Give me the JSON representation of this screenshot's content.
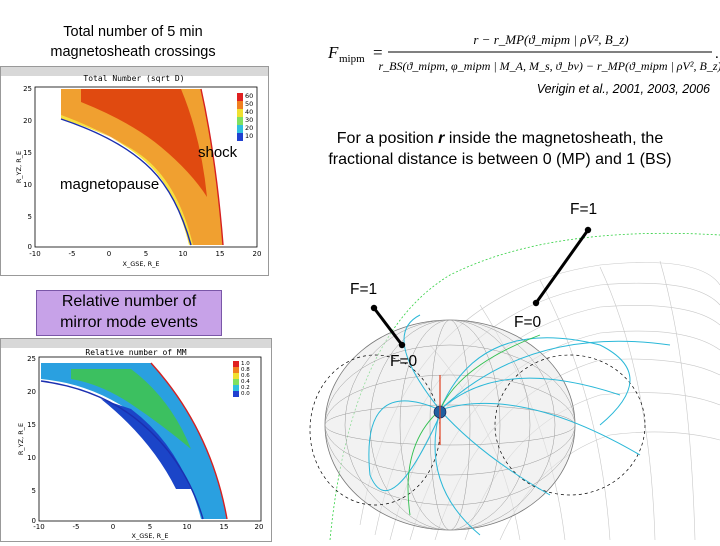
{
  "top_panel": {
    "heading_line1": "Total number of 5 min",
    "heading_line2": "magnetosheath crossings",
    "plot_title": "Total Number (sqrt D)",
    "label_shock": "shock",
    "label_magnetopause": "magnetopause",
    "x_axis_label": "X_GSE, R_E",
    "y_axis_label": "R_YZ, R_E",
    "x_ticks": [
      "-10",
      "-5",
      "0",
      "5",
      "10",
      "15",
      "20"
    ],
    "y_ticks": [
      "25",
      "20",
      "15",
      "10",
      "5",
      "0"
    ],
    "colorbar_ticks": [
      "60",
      "50",
      "40",
      "30",
      "20",
      "10"
    ]
  },
  "bottom_panel": {
    "heading_line1": "Relative number of",
    "heading_line2": "mirror mode events",
    "plot_title": "Relative number of MM",
    "x_axis_label": "X_GSE, R_E",
    "y_axis_label": "R_YZ, R_E",
    "x_ticks": [
      "-10",
      "-5",
      "0",
      "5",
      "10",
      "15",
      "20"
    ],
    "y_ticks": [
      "25",
      "20",
      "15",
      "10",
      "5",
      "0"
    ],
    "colorbar_ticks": [
      "1.0",
      "0.8",
      "0.6",
      "0.4",
      "0.2",
      "0.0"
    ]
  },
  "equation": {
    "lhs": "F",
    "lhs_sub": "mipm",
    "numerator": "r − r_MP(ϑ_mipm | ρV², B_z)",
    "denominator": "r_BS(ϑ_mipm, φ_mipm | M_A, M_s, ϑ_bv) − r_MP(ϑ_mipm | ρV², B_z)"
  },
  "citation": "Verigin et al., 2001, 2003, 2006",
  "description_pre": "For a position ",
  "description_r": "r",
  "description_post": " inside the magnetosheath, the",
  "description_line2": "fractional distance is between 0 (MP) and 1 (BS)",
  "f_labels": {
    "f1_upper": "F=1",
    "f1_left": "F=1",
    "f0_right": "F=0",
    "f0_left": "F=0"
  },
  "colors": {
    "purple_box": "#c7a2e8",
    "shock_line": "#d62020",
    "mp_line": "#1b2fb0"
  }
}
